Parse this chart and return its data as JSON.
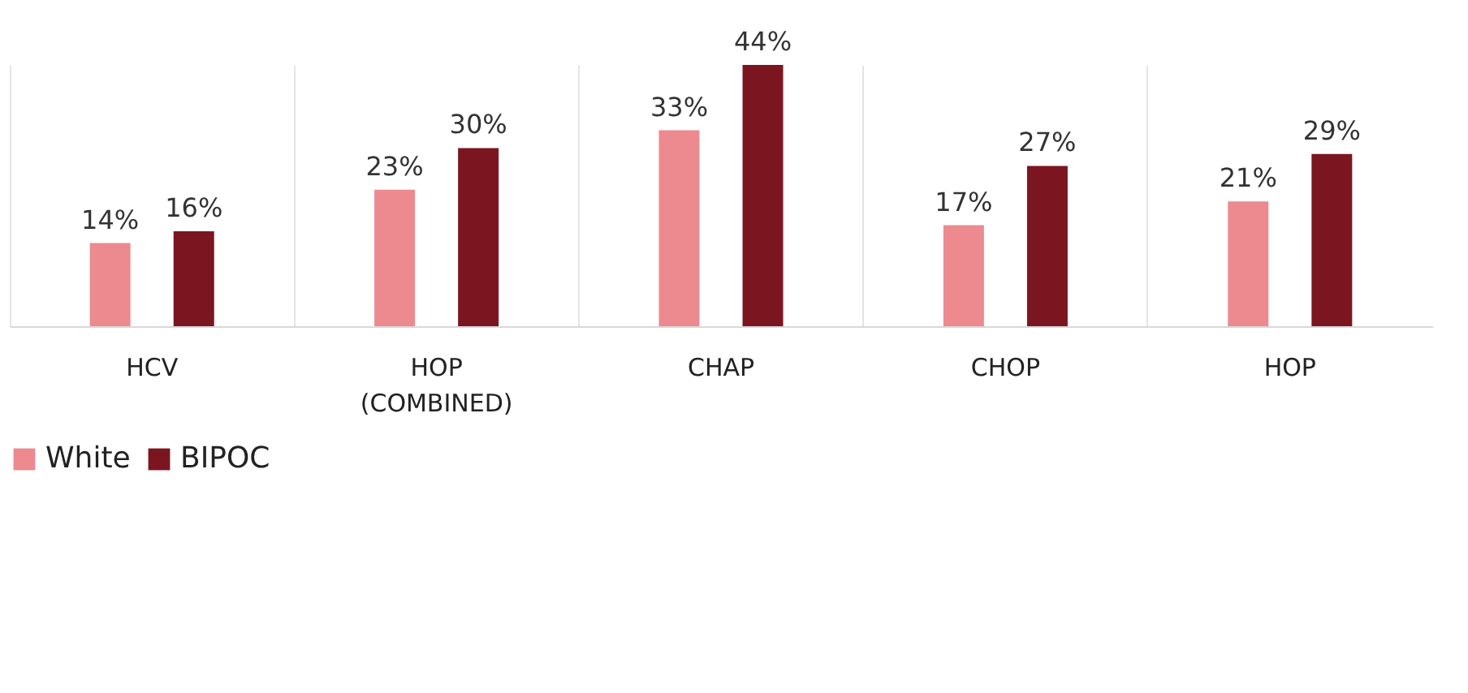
{
  "chart_data": {
    "type": "bar",
    "categories": [
      "HCV",
      "HOP (COMBINED)",
      "CHAP",
      "CHOP",
      "HOP"
    ],
    "series": [
      {
        "name": "White",
        "color": "#ec8a90",
        "values": [
          14,
          23,
          33,
          17,
          21
        ],
        "value_labels": [
          "14%",
          "23%",
          "33%",
          "17%",
          "21%"
        ]
      },
      {
        "name": "BIPOC",
        "color": "#7b1620",
        "values": [
          16,
          30,
          44,
          27,
          29
        ],
        "value_labels": [
          "16%",
          "30%",
          "44%",
          "27%",
          "29%"
        ]
      }
    ],
    "grid": "x",
    "legend": "bottom"
  }
}
